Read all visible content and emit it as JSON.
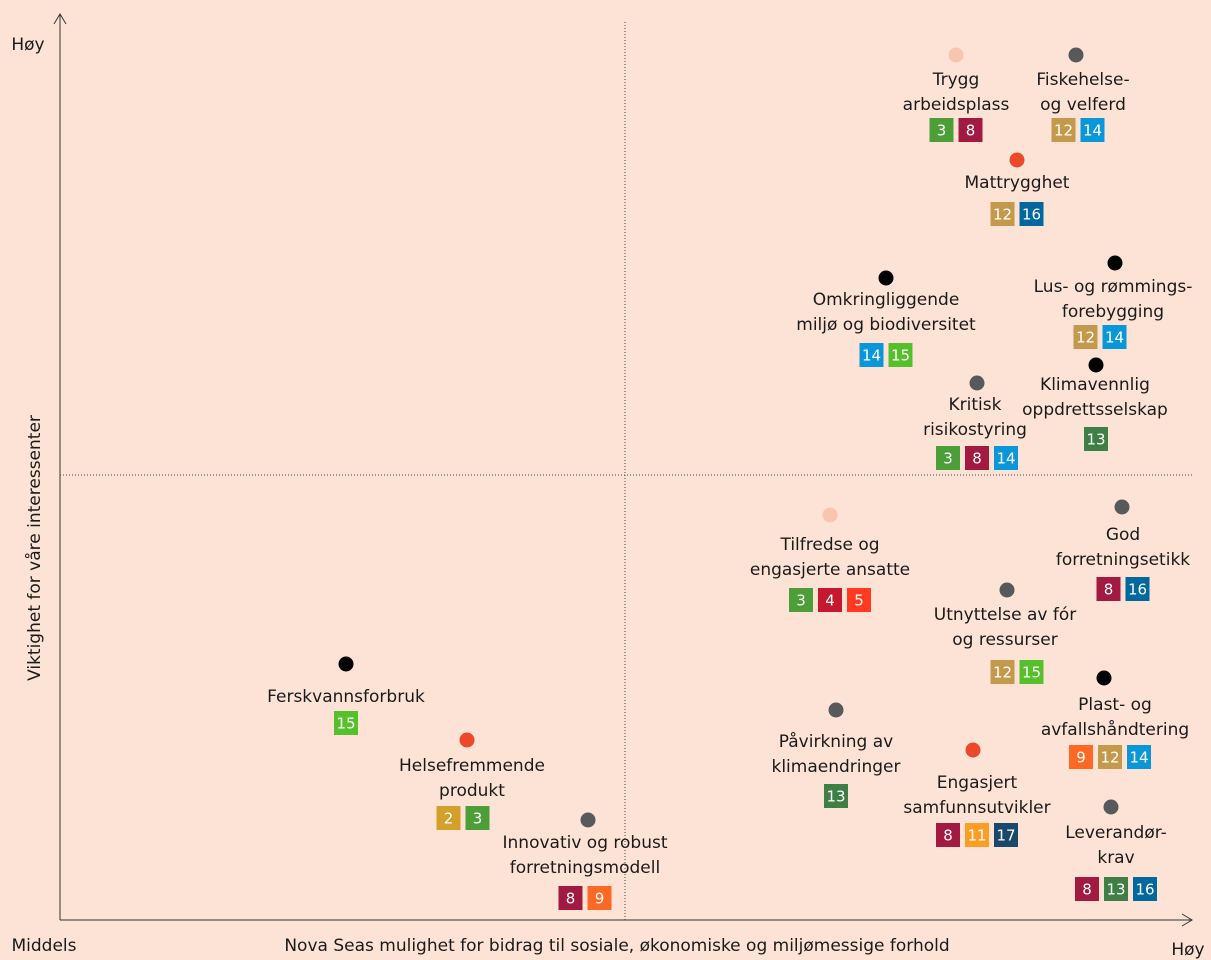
{
  "axes": {
    "y_label": "Viktighet for våre interessenter",
    "y_high": "Høy",
    "x_low": "Middels",
    "x_label": "Nova Seas mulighet for bidrag til sosiale, økonomiske og miljømessige forhold",
    "x_high": "Høy"
  },
  "topics": [
    {
      "lines": [
        "Trygg",
        "arbeidsplass"
      ],
      "sdgs": [
        3,
        8
      ],
      "color": "#f8c6ae"
    },
    {
      "lines": [
        "Fiskehelse-",
        "og velferd"
      ],
      "sdgs": [
        12,
        14
      ],
      "color": "#58595b"
    },
    {
      "lines": [
        "Mattrygghet"
      ],
      "sdgs": [
        12,
        16
      ],
      "color": "#ea4a2b"
    },
    {
      "lines": [
        "Omkringliggende",
        "miljø og biodiversitet"
      ],
      "sdgs": [
        14,
        15
      ],
      "color": "#000000"
    },
    {
      "lines": [
        "Lus- og rømmings-",
        "forebygging"
      ],
      "sdgs": [
        12,
        14
      ],
      "color": "#000000"
    },
    {
      "lines": [
        "Klimavennlig",
        "oppdrettsselskap"
      ],
      "sdgs": [
        13
      ],
      "color": "#000000"
    },
    {
      "lines": [
        "Kritisk",
        "risikostyring"
      ],
      "sdgs": [
        3,
        8,
        14
      ],
      "color": "#58595b"
    },
    {
      "lines": [
        "Tilfredse og",
        "engasjerte ansatte"
      ],
      "sdgs": [
        3,
        4,
        5
      ],
      "color": "#f8c6ae"
    },
    {
      "lines": [
        "God",
        "forretningsetikk"
      ],
      "sdgs": [
        8,
        16
      ],
      "color": "#58595b"
    },
    {
      "lines": [
        "Utnyttelse av fór",
        "og ressurser"
      ],
      "sdgs": [
        12,
        15
      ],
      "color": "#58595b"
    },
    {
      "lines": [
        "Ferskvannsforbruk"
      ],
      "sdgs": [
        15
      ],
      "color": "#000000"
    },
    {
      "lines": [
        "Plast- og",
        "avfallshåndtering"
      ],
      "sdgs": [
        9,
        12,
        14
      ],
      "color": "#000000"
    },
    {
      "lines": [
        "Påvirkning av",
        "klimaendringer"
      ],
      "sdgs": [
        13
      ],
      "color": "#58595b"
    },
    {
      "lines": [
        "Helsefremmende",
        "produkt"
      ],
      "sdgs": [
        2,
        3
      ],
      "color": "#ea4a2b"
    },
    {
      "lines": [
        "Engasjert",
        "samfunnsutvikler"
      ],
      "sdgs": [
        8,
        11,
        17
      ],
      "color": "#ea4a2b"
    },
    {
      "lines": [
        "Leverandør-",
        "krav"
      ],
      "sdgs": [
        8,
        13,
        16
      ],
      "color": "#58595b"
    },
    {
      "lines": [
        "Innovativ og robust",
        "forretningsmodell"
      ],
      "sdgs": [
        8,
        9
      ],
      "color": "#58595b"
    }
  ]
}
